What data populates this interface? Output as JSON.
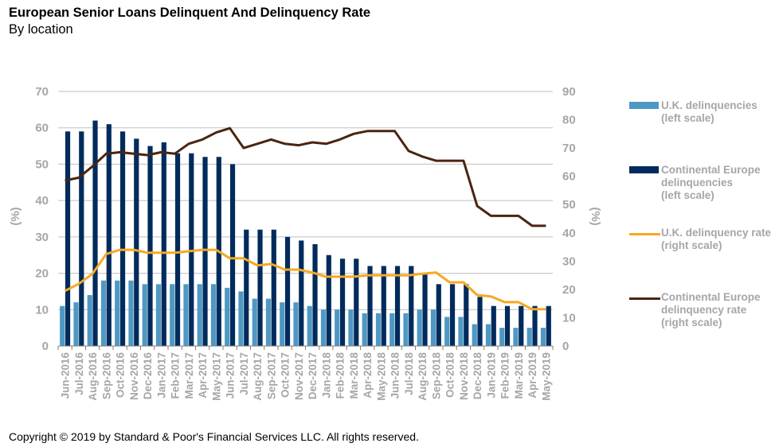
{
  "header": {
    "title": "European Senior Loans Delinquent And Delinquency Rate",
    "subtitle": "By location"
  },
  "footer": {
    "copyright": "Copyright © 2019 by Standard & Poor's Financial Services LLC. All rights reserved."
  },
  "colors": {
    "uk_bars": "#4f98c3",
    "continental_bars": "#002b5c",
    "uk_rate_line": "#f7a823",
    "continental_rate_line": "#4a2511",
    "gridline": "#bfbfbf",
    "axis_text": "#a6a6a6"
  },
  "legend": {
    "items": [
      {
        "label": "   U.K. delinquencies\n(left scale)",
        "kind": "bar",
        "series": "uk_bars"
      },
      {
        "label": "   Continental Europe\ndelinquencies\n(left scale)",
        "kind": "bar",
        "series": "continental_bars"
      },
      {
        "label": "U.K. delinquency rate\n(right scale)",
        "kind": "line",
        "series": "uk_rate_line"
      },
      {
        "label": "Continental Europe\ndelinquency rate\n(right scale)",
        "kind": "line",
        "series": "continental_rate_line"
      }
    ]
  },
  "chart_data": {
    "type": "bar",
    "title": "European Senior Loans Delinquent And Delinquency Rate",
    "subtitle": "By location",
    "xlabel": "",
    "ylabel": "(%)",
    "y2label": "(%)",
    "ylim": [
      0,
      70
    ],
    "y2lim": [
      0,
      90
    ],
    "yticks": [
      0,
      10,
      20,
      30,
      40,
      50,
      60,
      70
    ],
    "y2ticks": [
      0,
      10,
      20,
      30,
      40,
      50,
      60,
      70,
      80,
      90
    ],
    "grid": true,
    "legend_position": "right",
    "categories": [
      "Jun-2016",
      "Jul-2016",
      "Aug-2016",
      "Sep-2016",
      "Oct-2016",
      "Nov-2016",
      "Dec-2016",
      "Jan-2017",
      "Feb-2017",
      "Mar-2017",
      "Apr-2017",
      "May-2017",
      "Jun-2017",
      "Jul-2017",
      "Aug-2017",
      "Sep-2017",
      "Oct-2017",
      "Nov-2017",
      "Dec-2017",
      "Jan-2018",
      "Feb-2018",
      "Mar-2018",
      "Apr-2018",
      "May-2018",
      "Jun-2018",
      "Jul-2018",
      "Aug-2018",
      "Sep-2018",
      "Oct-2018",
      "Nov-2018",
      "Dec-2018",
      "Jan-2019",
      "Feb-2019",
      "Mar-2019",
      "Apr-2019",
      "May-2019"
    ],
    "series": [
      {
        "name": "U.K. delinquencies (left scale)",
        "type": "bar",
        "axis": "left",
        "values": [
          11,
          12,
          14,
          18,
          18,
          18,
          17,
          17,
          17,
          17,
          17,
          17,
          16,
          15,
          13,
          13,
          12,
          12,
          11,
          10,
          10,
          10,
          9,
          9,
          9,
          9,
          10,
          10,
          8,
          8,
          6,
          6,
          5,
          5,
          5,
          5
        ]
      },
      {
        "name": "Continental Europe delinquencies (left scale)",
        "type": "bar",
        "axis": "left",
        "values": [
          59,
          59,
          62,
          61,
          59,
          57,
          55,
          56,
          53,
          53,
          52,
          52,
          50,
          32,
          32,
          32,
          30,
          29,
          28,
          25,
          24,
          24,
          22,
          22,
          22,
          22,
          20,
          17,
          17,
          17,
          13.5,
          11,
          11,
          11,
          11,
          11
        ]
      },
      {
        "name": "U.K. delinquency rate (right scale)",
        "type": "line",
        "axis": "right",
        "values": [
          19.5,
          22,
          25.5,
          32.5,
          34,
          34,
          33,
          33,
          33,
          33.5,
          34,
          34,
          31,
          31,
          28.5,
          29,
          27,
          27,
          26,
          24.5,
          24.5,
          24.5,
          25,
          25,
          25,
          25,
          25.5,
          26,
          22.5,
          22.5,
          18,
          17.5,
          15.5,
          15.5,
          13,
          13
        ]
      },
      {
        "name": "Continental Europe delinquency rate (right scale)",
        "type": "line",
        "axis": "right",
        "values": [
          58.5,
          59.5,
          63.5,
          68,
          68.5,
          68,
          67.5,
          68.5,
          68,
          71.5,
          73,
          75.5,
          77,
          70,
          71.5,
          73,
          71.5,
          71,
          72,
          71.5,
          73,
          75,
          76,
          76,
          76,
          69,
          67,
          65.5,
          65.5,
          65.5,
          49.5,
          46,
          46,
          46,
          42.5,
          42.5
        ]
      }
    ]
  }
}
